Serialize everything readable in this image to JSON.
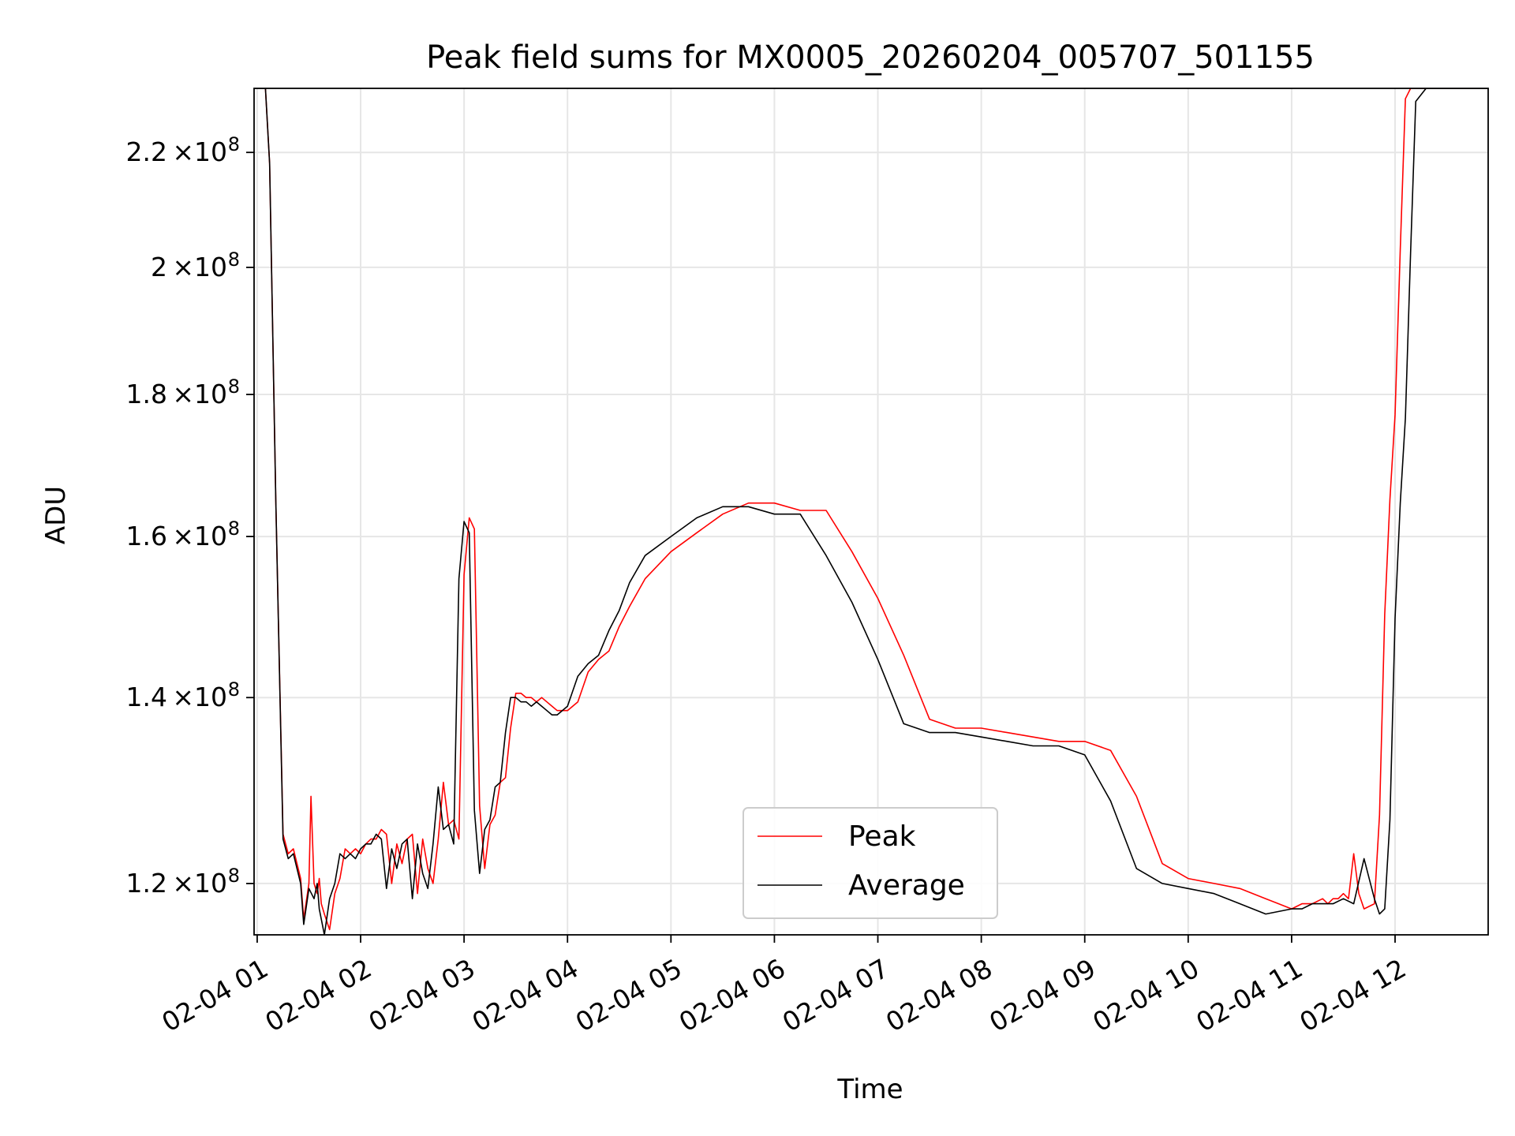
{
  "chart_data": {
    "type": "line",
    "title": "Peak field sums for MX0005_20260204_005707_501155",
    "xlabel": "Time",
    "ylabel": "ADU",
    "y_scale": "log",
    "ylim": [
      115000000,
      232000000
    ],
    "xlim_hours": [
      0.97,
      12.9
    ],
    "grid": true,
    "legend_position": "lower-center",
    "x_tick_labels": [
      {
        "hour": 1,
        "label": "02-04 01"
      },
      {
        "hour": 2,
        "label": "02-04 02"
      },
      {
        "hour": 3,
        "label": "02-04 03"
      },
      {
        "hour": 4,
        "label": "02-04 04"
      },
      {
        "hour": 5,
        "label": "02-04 05"
      },
      {
        "hour": 6,
        "label": "02-04 06"
      },
      {
        "hour": 7,
        "label": "02-04 07"
      },
      {
        "hour": 8,
        "label": "02-04 08"
      },
      {
        "hour": 9,
        "label": "02-04 09"
      },
      {
        "hour": 10,
        "label": "02-04 10"
      },
      {
        "hour": 11,
        "label": "02-04 11"
      },
      {
        "hour": 12,
        "label": "02-04 12"
      }
    ],
    "y_tick_labels": [
      {
        "value": 120000000,
        "mantissa": "1.2",
        "exponent": "8"
      },
      {
        "value": 140000000,
        "mantissa": "1.4",
        "exponent": "8"
      },
      {
        "value": 160000000,
        "mantissa": "1.6",
        "exponent": "8"
      },
      {
        "value": 180000000,
        "mantissa": "1.8",
        "exponent": "8"
      },
      {
        "value": 200000000,
        "mantissa": "2",
        "exponent": "8"
      },
      {
        "value": 220000000,
        "mantissa": "2.2",
        "exponent": "8"
      }
    ],
    "series": [
      {
        "name": "Peak",
        "color": "#ff0000",
        "x_hours": [
          0.97,
          1.02,
          1.08,
          1.12,
          1.18,
          1.25,
          1.3,
          1.35,
          1.42,
          1.45,
          1.5,
          1.52,
          1.55,
          1.58,
          1.6,
          1.62,
          1.65,
          1.7,
          1.75,
          1.8,
          1.85,
          1.9,
          1.95,
          2.0,
          2.05,
          2.1,
          2.15,
          2.2,
          2.25,
          2.3,
          2.35,
          2.4,
          2.45,
          2.5,
          2.55,
          2.6,
          2.65,
          2.7,
          2.75,
          2.8,
          2.85,
          2.9,
          2.95,
          3.0,
          3.05,
          3.1,
          3.15,
          3.2,
          3.25,
          3.3,
          3.35,
          3.4,
          3.45,
          3.5,
          3.55,
          3.6,
          3.65,
          3.7,
          3.75,
          3.8,
          3.85,
          3.9,
          4.0,
          4.1,
          4.2,
          4.3,
          4.4,
          4.5,
          4.6,
          4.75,
          5.0,
          5.25,
          5.5,
          5.75,
          6.0,
          6.25,
          6.5,
          6.75,
          7.0,
          7.25,
          7.5,
          7.75,
          8.0,
          8.25,
          8.5,
          8.75,
          9.0,
          9.25,
          9.5,
          9.75,
          10.0,
          10.25,
          10.5,
          10.75,
          11.0,
          11.1,
          11.2,
          11.3,
          11.35,
          11.4,
          11.45,
          11.5,
          11.55,
          11.6,
          11.65,
          11.7,
          11.8,
          11.85,
          11.9,
          11.95,
          12.0,
          12.05,
          12.1,
          12.15,
          12.2,
          12.3,
          12.5,
          12.9
        ],
        "values": [
          232000000,
          232000000,
          232000000,
          218000000,
          165000000,
          125000000,
          123000000,
          123500000,
          120500000,
          116500000,
          120000000,
          129000000,
          120000000,
          119000000,
          120500000,
          118000000,
          117000000,
          115500000,
          119000000,
          120500000,
          123500000,
          123000000,
          123500000,
          123000000,
          124000000,
          124500000,
          124500000,
          125500000,
          125000000,
          120000000,
          124000000,
          122000000,
          124500000,
          125000000,
          119000000,
          124500000,
          121500000,
          120000000,
          124500000,
          130500000,
          126000000,
          126500000,
          124500000,
          155000000,
          162500000,
          161000000,
          128000000,
          121500000,
          126000000,
          127000000,
          130500000,
          131000000,
          136500000,
          140500000,
          140500000,
          140000000,
          140000000,
          139500000,
          140000000,
          139500000,
          139000000,
          138500000,
          138500000,
          139500000,
          143000000,
          144500000,
          145500000,
          148500000,
          151000000,
          154500000,
          158000000,
          160500000,
          163000000,
          164500000,
          164500000,
          163500000,
          163500000,
          158000000,
          152000000,
          145000000,
          137500000,
          136500000,
          136500000,
          136000000,
          135500000,
          135000000,
          135000000,
          134000000,
          129000000,
          122000000,
          120500000,
          120000000,
          119500000,
          118500000,
          117500000,
          118000000,
          118000000,
          118500000,
          118000000,
          118500000,
          118500000,
          119000000,
          118500000,
          123000000,
          119000000,
          117500000,
          118000000,
          127000000,
          150000000,
          165000000,
          177000000,
          203000000,
          230000000,
          232000000,
          232000000,
          232000000,
          232000000,
          232000000
        ]
      },
      {
        "name": "Average",
        "color": "#000000",
        "x_hours": [
          0.97,
          1.02,
          1.08,
          1.12,
          1.18,
          1.25,
          1.3,
          1.35,
          1.42,
          1.45,
          1.5,
          1.55,
          1.58,
          1.6,
          1.62,
          1.65,
          1.7,
          1.75,
          1.8,
          1.85,
          1.9,
          1.95,
          2.0,
          2.05,
          2.1,
          2.15,
          2.2,
          2.25,
          2.3,
          2.35,
          2.4,
          2.45,
          2.5,
          2.55,
          2.6,
          2.65,
          2.7,
          2.75,
          2.8,
          2.85,
          2.9,
          2.95,
          3.0,
          3.05,
          3.1,
          3.15,
          3.2,
          3.25,
          3.3,
          3.35,
          3.4,
          3.45,
          3.5,
          3.55,
          3.6,
          3.65,
          3.7,
          3.75,
          3.8,
          3.85,
          3.9,
          4.0,
          4.1,
          4.2,
          4.3,
          4.4,
          4.5,
          4.6,
          4.75,
          5.0,
          5.25,
          5.5,
          5.75,
          6.0,
          6.25,
          6.5,
          6.75,
          7.0,
          7.25,
          7.5,
          7.75,
          8.0,
          8.25,
          8.5,
          8.75,
          9.0,
          9.25,
          9.5,
          9.75,
          10.0,
          10.25,
          10.5,
          10.75,
          11.0,
          11.1,
          11.2,
          11.3,
          11.4,
          11.5,
          11.6,
          11.7,
          11.8,
          11.85,
          11.9,
          11.95,
          12.0,
          12.05,
          12.1,
          12.15,
          12.2,
          12.3,
          12.5,
          12.9
        ],
        "values": [
          232000000,
          232000000,
          232000000,
          218000000,
          165000000,
          124500000,
          122500000,
          123000000,
          120000000,
          116000000,
          119500000,
          118500000,
          120000000,
          117500000,
          116500000,
          115000000,
          118500000,
          120000000,
          123000000,
          122500000,
          123000000,
          122500000,
          123500000,
          124000000,
          124000000,
          125000000,
          124500000,
          119500000,
          123500000,
          121500000,
          124000000,
          124500000,
          118500000,
          124000000,
          121000000,
          119500000,
          124000000,
          130000000,
          125500000,
          126000000,
          124000000,
          154500000,
          162000000,
          160500000,
          127500000,
          121000000,
          125500000,
          126500000,
          130000000,
          130500000,
          136000000,
          140000000,
          140000000,
          139500000,
          139500000,
          139000000,
          139500000,
          139000000,
          138500000,
          138000000,
          138000000,
          139000000,
          142500000,
          144000000,
          145000000,
          148000000,
          150500000,
          154000000,
          157500000,
          160000000,
          162500000,
          164000000,
          164000000,
          163000000,
          163000000,
          157500000,
          151500000,
          144500000,
          137000000,
          136000000,
          136000000,
          135500000,
          135000000,
          134500000,
          134500000,
          133500000,
          128500000,
          121500000,
          120000000,
          119500000,
          119000000,
          118000000,
          117000000,
          117500000,
          117500000,
          118000000,
          118000000,
          118000000,
          118500000,
          118000000,
          122500000,
          118500000,
          117000000,
          117500000,
          126500000,
          149500000,
          164500000,
          176500000,
          202500000,
          229500000,
          232000000,
          232000000,
          232000000
        ]
      }
    ]
  }
}
